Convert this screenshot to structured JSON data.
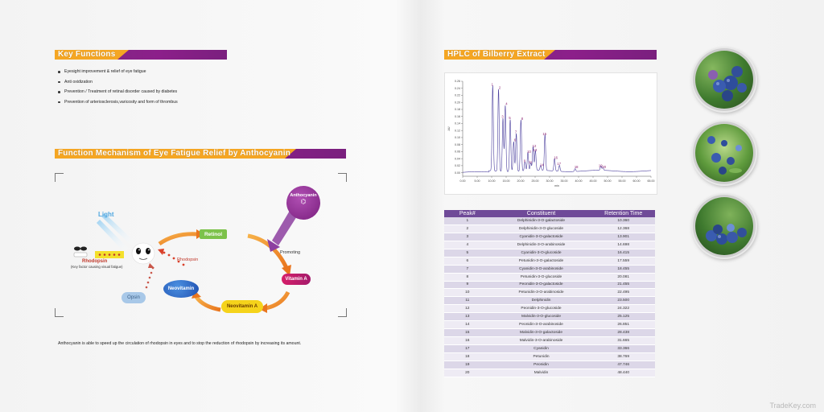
{
  "key_functions": {
    "title": "Key Functions",
    "items": [
      "Eyesight improvement & relief of eye fatigue",
      "Anti oxidization",
      "Prevention / Treatment of retinal disorder caused by diabetes",
      "Prevention of arteriosclerosis,varicosity and form of thrombus"
    ]
  },
  "mechanism": {
    "title": "Function Mechanism of Eye Fatigue Relief by Anthocyanin",
    "light": "Light",
    "anthocyanin": "Anthocyanin",
    "retinol": "Retinol",
    "vitamin_a": "Vitamin A",
    "neovitamin_a": "Neovitamin A",
    "neovitamin": "Neovitamin",
    "opsin": "Opsin",
    "rhodopsin": "Rhodopsin",
    "rhodopsin_left": "Rhodopsin",
    "rhodopsin_note": "(Key factor causing visual fatigue)",
    "promoting": "Promoting",
    "caption": "Anthocyanin is able to speed up the circulation of rhodopsin in eyes and to stop the reduction of rhodopsin by increasing its amount."
  },
  "hplc": {
    "title": "HPLC of Bilberry Extract"
  },
  "chart_data": {
    "type": "line",
    "title": "",
    "xlabel": "min",
    "ylabel": "AU",
    "xlim": [
      0,
      65
    ],
    "ylim": [
      -0.01,
      0.26
    ],
    "x_ticks": [
      "0.00",
      "5.00",
      "10.00",
      "15.00",
      "20.00",
      "25.00",
      "30.00",
      "35.00",
      "40.00",
      "45.00",
      "50.00",
      "55.00",
      "60.00",
      "65.00"
    ],
    "y_ticks": [
      "0.00",
      "0.02",
      "0.04",
      "0.06",
      "0.08",
      "0.10",
      "0.12",
      "0.14",
      "0.16",
      "0.18",
      "0.20",
      "0.22",
      "0.24",
      "0.26"
    ],
    "peaks": [
      {
        "label": "1",
        "x": 10.36,
        "y": 0.243
      },
      {
        "label": "2",
        "x": 12.37,
        "y": 0.234
      },
      {
        "label": "3",
        "x": 13.9,
        "y": 0.151
      },
      {
        "label": "4",
        "x": 14.7,
        "y": 0.188
      },
      {
        "label": "5",
        "x": 16.4,
        "y": 0.148
      },
      {
        "label": "6",
        "x": 17.6,
        "y": 0.085
      },
      {
        "label": "7",
        "x": 18.5,
        "y": 0.108
      },
      {
        "label": "8",
        "x": 20.1,
        "y": 0.146
      },
      {
        "label": "9",
        "x": 21.5,
        "y": 0.025
      },
      {
        "label": "10",
        "x": 22.5,
        "y": 0.052
      },
      {
        "label": "11",
        "x": 23.5,
        "y": 0.022
      },
      {
        "label": "12",
        "x": 24.3,
        "y": 0.068
      },
      {
        "label": "13",
        "x": 25.1,
        "y": 0.056
      },
      {
        "label": "14",
        "x": 26.9,
        "y": 0.014
      },
      {
        "label": "15",
        "x": 28.4,
        "y": 0.102
      },
      {
        "label": "16",
        "x": 31.7,
        "y": 0.035
      },
      {
        "label": "17",
        "x": 33.4,
        "y": 0.017
      },
      {
        "label": "18",
        "x": 38.8,
        "y": 0.008
      },
      {
        "label": "19",
        "x": 47.7,
        "y": 0.012
      },
      {
        "label": "20",
        "x": 48.4,
        "y": 0.008
      }
    ]
  },
  "peak_table": {
    "headers": [
      "Peak#",
      "Constituent",
      "Retention Time"
    ],
    "rows": [
      [
        "1",
        "Delphinidin-3-O-galactoside",
        "10.360"
      ],
      [
        "2",
        "Delphinidin-3-O-glucoside",
        "12.368"
      ],
      [
        "3",
        "Cyanidin-3-O-galactoside",
        "13.901"
      ],
      [
        "4",
        "Delphinidin-3-O-arabinoside",
        "14.698"
      ],
      [
        "5",
        "Cyanidin-3-O-glucoside",
        "16.415"
      ],
      [
        "6",
        "Petunidin-3-O-galactoside",
        "17.559"
      ],
      [
        "7",
        "Cyanidin-3-O-arabinoside",
        "18.455"
      ],
      [
        "8",
        "Petunidin-3-O-glucoside",
        "20.081"
      ],
      [
        "9",
        "Peonidin-3-O-galactoside",
        "21.455"
      ],
      [
        "10",
        "Petunidin-3-O-arabinoside",
        "22.495"
      ],
      [
        "11",
        "Delphinidin",
        "23.500"
      ],
      [
        "12",
        "Peonidin-3-O-glucoside",
        "24.322"
      ],
      [
        "13",
        "Malvidin-3-O-glucoside",
        "25.125"
      ],
      [
        "14",
        "Peonidin-3-O-arabinoside",
        "26.851"
      ],
      [
        "15",
        "Malvidin-3-O-galactoside",
        "28.438"
      ],
      [
        "16",
        "Malvidin-3-O-arabinoside",
        "31.665"
      ],
      [
        "17",
        "Cyanidin",
        "33.366"
      ],
      [
        "18",
        "Petunidin",
        "38.769"
      ],
      [
        "19",
        "Peonidin",
        "47.746"
      ],
      [
        "20",
        "Malvidin",
        "48.440"
      ]
    ]
  },
  "watermark": "TradeKey.com",
  "colors": {
    "purple": "#7a2a80",
    "orange": "#f5a623",
    "table_header": "#6f4a98"
  }
}
